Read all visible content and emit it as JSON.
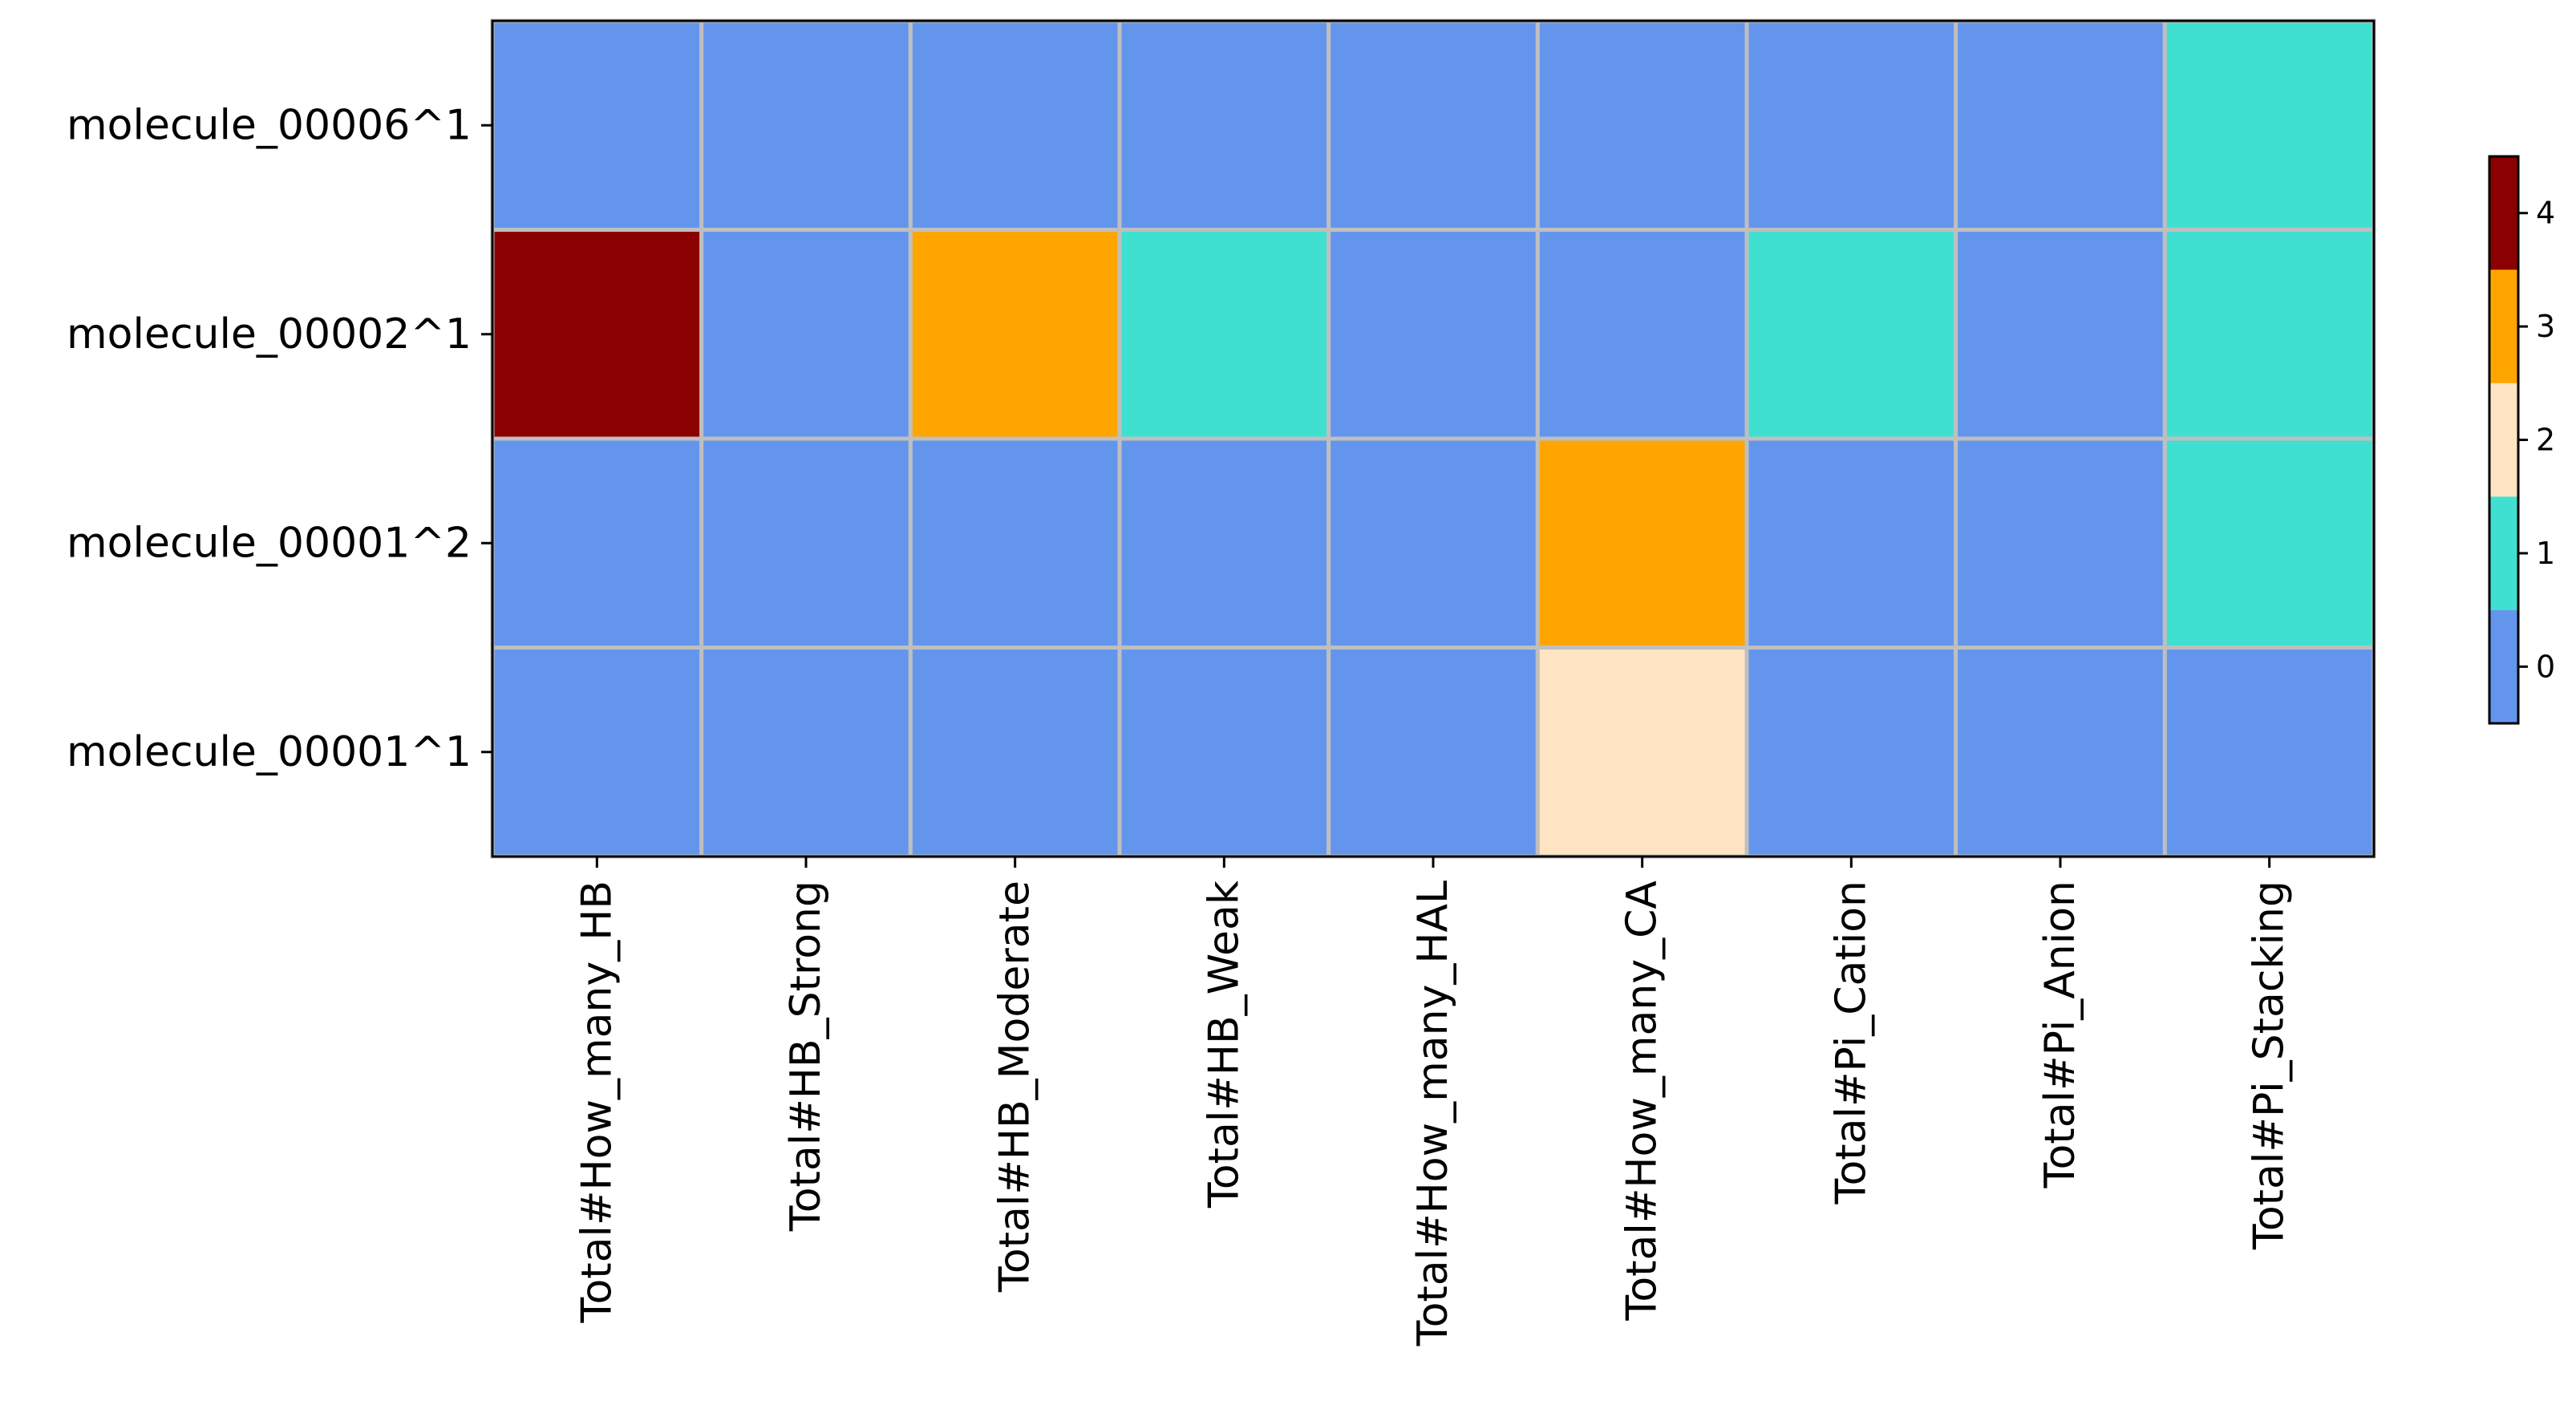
{
  "chart_data": {
    "type": "heatmap",
    "title": "",
    "xlabel": "",
    "ylabel": "",
    "rows": [
      "molecule_00006^1",
      "molecule_00002^1",
      "molecule_00001^2",
      "molecule_00001^1"
    ],
    "columns": [
      "Total#How_many_HB",
      "Total#HB_Strong",
      "Total#HB_Moderate",
      "Total#HB_Weak",
      "Total#How_many_HAL",
      "Total#How_many_CA",
      "Total#Pi_Cation",
      "Total#Pi_Anion",
      "Total#Pi_Stacking"
    ],
    "values": [
      [
        0,
        0,
        0,
        0,
        0,
        0,
        0,
        0,
        1
      ],
      [
        4,
        0,
        3,
        1,
        0,
        0,
        1,
        0,
        1
      ],
      [
        0,
        0,
        0,
        0,
        0,
        3,
        0,
        0,
        1
      ],
      [
        0,
        0,
        0,
        0,
        0,
        2,
        0,
        0,
        0
      ]
    ],
    "colorbar": {
      "levels": [
        0,
        1,
        2,
        3,
        4
      ],
      "colors": [
        "#6495ED",
        "#40E0D0",
        "#FFE4C4",
        "#FFA500",
        "#8B0000"
      ],
      "tick_labels": [
        "0",
        "1",
        "2",
        "3",
        "4"
      ],
      "range": [
        -0.5,
        4.5
      ]
    },
    "grid_color": "#bfbfbf"
  }
}
